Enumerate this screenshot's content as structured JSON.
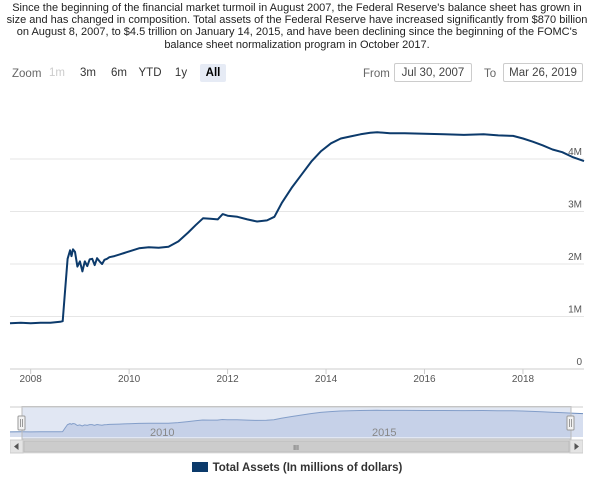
{
  "intro_text": "Since the beginning of the financial market turmoil in August 2007, the Federal Reserve's balance sheet has grown in size and has changed in composition. Total assets of the Federal Reserve have increased significantly from $870 billion on August 8, 2007, to $4.5 trillion on January 14, 2015, and have been declining since the beginning of the FOMC's balance sheet normalization program in October 2017.",
  "toolbar": {
    "zoom_label": "Zoom",
    "buttons": [
      "1m",
      "3m",
      "6m",
      "YTD",
      "1y",
      "All"
    ],
    "selected_button": "All",
    "from_label": "From",
    "from_value": "Jul 30, 2007",
    "to_label": "To",
    "to_value": "Mar 26, 2019"
  },
  "navigator": {
    "year_labels": [
      "2010",
      "2015"
    ],
    "scrollbar_grip": "III"
  },
  "colors": {
    "series": "#0c3a6b",
    "navigator_fill": "#c9d4ea",
    "gridline": "#e6e6e6"
  },
  "chart_data": {
    "type": "line",
    "title": "",
    "xlabel": "",
    "ylabel": "",
    "x_tick_labels": [
      "2008",
      "2010",
      "2012",
      "2014",
      "2016",
      "2018"
    ],
    "y_tick_labels": [
      "0",
      "1M",
      "2M",
      "3M",
      "4M"
    ],
    "xlim": [
      2007.58,
      2019.24
    ],
    "ylim": [
      0,
      4900000
    ],
    "grid": true,
    "legend_position": "bottom-center",
    "series": [
      {
        "name": "Total Assets (In millions of dollars)",
        "x": [
          2007.58,
          2007.8,
          2008.0,
          2008.2,
          2008.4,
          2008.6,
          2008.65,
          2008.7,
          2008.75,
          2008.8,
          2008.83,
          2008.86,
          2008.9,
          2008.95,
          2009.0,
          2009.05,
          2009.1,
          2009.15,
          2009.2,
          2009.25,
          2009.3,
          2009.35,
          2009.4,
          2009.45,
          2009.5,
          2009.55,
          2009.6,
          2009.7,
          2009.8,
          2009.9,
          2010.0,
          2010.2,
          2010.4,
          2010.6,
          2010.8,
          2011.0,
          2011.2,
          2011.35,
          2011.5,
          2011.65,
          2011.8,
          2011.9,
          2012.0,
          2012.2,
          2012.4,
          2012.6,
          2012.8,
          2012.95,
          2013.1,
          2013.3,
          2013.5,
          2013.7,
          2013.9,
          2014.1,
          2014.3,
          2014.5,
          2014.7,
          2014.9,
          2015.04,
          2015.3,
          2015.6,
          2016.0,
          2016.4,
          2016.8,
          2017.2,
          2017.5,
          2017.8,
          2018.0,
          2018.2,
          2018.4,
          2018.6,
          2018.8,
          2019.0,
          2019.24
        ],
        "values": [
          870000,
          880000,
          870000,
          880000,
          880000,
          900000,
          910000,
          1500000,
          2100000,
          2260000,
          2150000,
          2280000,
          2230000,
          1950000,
          2050000,
          1860000,
          2050000,
          1960000,
          2090000,
          2100000,
          1980000,
          2110000,
          2050000,
          2000000,
          2080000,
          2100000,
          2130000,
          2150000,
          2180000,
          2210000,
          2240000,
          2300000,
          2320000,
          2310000,
          2330000,
          2430000,
          2600000,
          2740000,
          2870000,
          2860000,
          2850000,
          2950000,
          2920000,
          2900000,
          2850000,
          2810000,
          2830000,
          2900000,
          3160000,
          3450000,
          3700000,
          3950000,
          4150000,
          4300000,
          4390000,
          4430000,
          4470000,
          4500000,
          4510000,
          4490000,
          4490000,
          4480000,
          4470000,
          4460000,
          4470000,
          4450000,
          4440000,
          4390000,
          4330000,
          4260000,
          4180000,
          4130000,
          4040000,
          3960000
        ]
      }
    ]
  }
}
